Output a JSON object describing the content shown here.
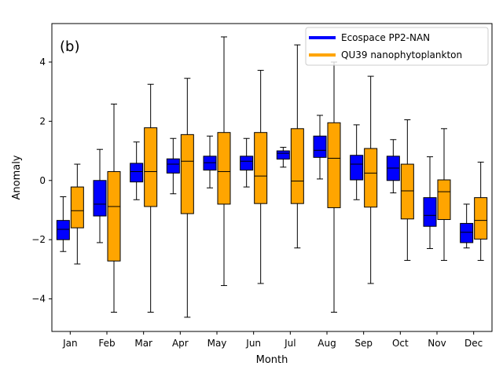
{
  "chart_data": {
    "type": "box",
    "panel_label": "(b)",
    "title": "",
    "xlabel": "Month",
    "ylabel": "Anomaly",
    "ylim": [
      -5.1,
      5.3
    ],
    "yticks": [
      -4,
      -2,
      0,
      2,
      4
    ],
    "categories": [
      "Jan",
      "Feb",
      "Mar",
      "Apr",
      "May",
      "Jun",
      "Jul",
      "Aug",
      "Sep",
      "Oct",
      "Nov",
      "Dec"
    ],
    "legend_position": "top-right",
    "grid": false,
    "series": [
      {
        "name": "Ecospace PP2-NAN",
        "color": "#0000ff",
        "boxes": [
          {
            "whislo": -2.4,
            "q1": -2.0,
            "med": -1.65,
            "q3": -1.35,
            "whishi": -0.55
          },
          {
            "whislo": -2.1,
            "q1": -1.2,
            "med": -0.8,
            "q3": 0.0,
            "whishi": 1.05
          },
          {
            "whislo": -0.65,
            "q1": -0.05,
            "med": 0.3,
            "q3": 0.58,
            "whishi": 1.3
          },
          {
            "whislo": -0.45,
            "q1": 0.25,
            "med": 0.55,
            "q3": 0.73,
            "whishi": 1.42
          },
          {
            "whislo": -0.25,
            "q1": 0.35,
            "med": 0.6,
            "q3": 0.82,
            "whishi": 1.5
          },
          {
            "whislo": -0.22,
            "q1": 0.35,
            "med": 0.65,
            "q3": 0.82,
            "whishi": 1.42
          },
          {
            "whislo": 0.45,
            "q1": 0.72,
            "med": 0.92,
            "q3": 1.0,
            "whishi": 1.12
          },
          {
            "whislo": 0.05,
            "q1": 0.78,
            "med": 1.02,
            "q3": 1.5,
            "whishi": 2.2
          },
          {
            "whislo": -0.65,
            "q1": 0.02,
            "med": 0.55,
            "q3": 0.85,
            "whishi": 1.88
          },
          {
            "whislo": -0.42,
            "q1": 0.0,
            "med": 0.42,
            "q3": 0.82,
            "whishi": 1.38
          },
          {
            "whislo": -2.3,
            "q1": -1.55,
            "med": -1.18,
            "q3": -0.58,
            "whishi": 0.8
          },
          {
            "whislo": -2.28,
            "q1": -2.1,
            "med": -1.75,
            "q3": -1.45,
            "whishi": -0.8
          }
        ]
      },
      {
        "name": "QU39 nanophytoplankton",
        "color": "#ffa500",
        "boxes": [
          {
            "whislo": -2.82,
            "q1": -1.6,
            "med": -1.02,
            "q3": -0.22,
            "whishi": 0.55
          },
          {
            "whislo": -4.45,
            "q1": -2.72,
            "med": -0.88,
            "q3": 0.3,
            "whishi": 2.58
          },
          {
            "whislo": -4.45,
            "q1": -0.88,
            "med": 0.3,
            "q3": 1.78,
            "whishi": 3.25
          },
          {
            "whislo": -4.62,
            "q1": -1.12,
            "med": 0.65,
            "q3": 1.55,
            "whishi": 3.45
          },
          {
            "whislo": -3.55,
            "q1": -0.8,
            "med": 0.3,
            "q3": 1.62,
            "whishi": 4.85
          },
          {
            "whislo": -3.48,
            "q1": -0.78,
            "med": 0.15,
            "q3": 1.62,
            "whishi": 3.72
          },
          {
            "whislo": -2.28,
            "q1": -0.78,
            "med": -0.02,
            "q3": 1.75,
            "whishi": 4.58
          },
          {
            "whislo": -4.45,
            "q1": -0.92,
            "med": 0.75,
            "q3": 1.95,
            "whishi": 4.0
          },
          {
            "whislo": -3.48,
            "q1": -0.9,
            "med": 0.25,
            "q3": 1.08,
            "whishi": 3.52
          },
          {
            "whislo": -2.7,
            "q1": -1.3,
            "med": -0.35,
            "q3": 0.55,
            "whishi": 2.05
          },
          {
            "whislo": -2.7,
            "q1": -1.32,
            "med": -0.38,
            "q3": 0.02,
            "whishi": 1.75
          },
          {
            "whislo": -2.7,
            "q1": -1.98,
            "med": -1.35,
            "q3": -0.58,
            "whishi": 0.62
          }
        ]
      }
    ]
  }
}
